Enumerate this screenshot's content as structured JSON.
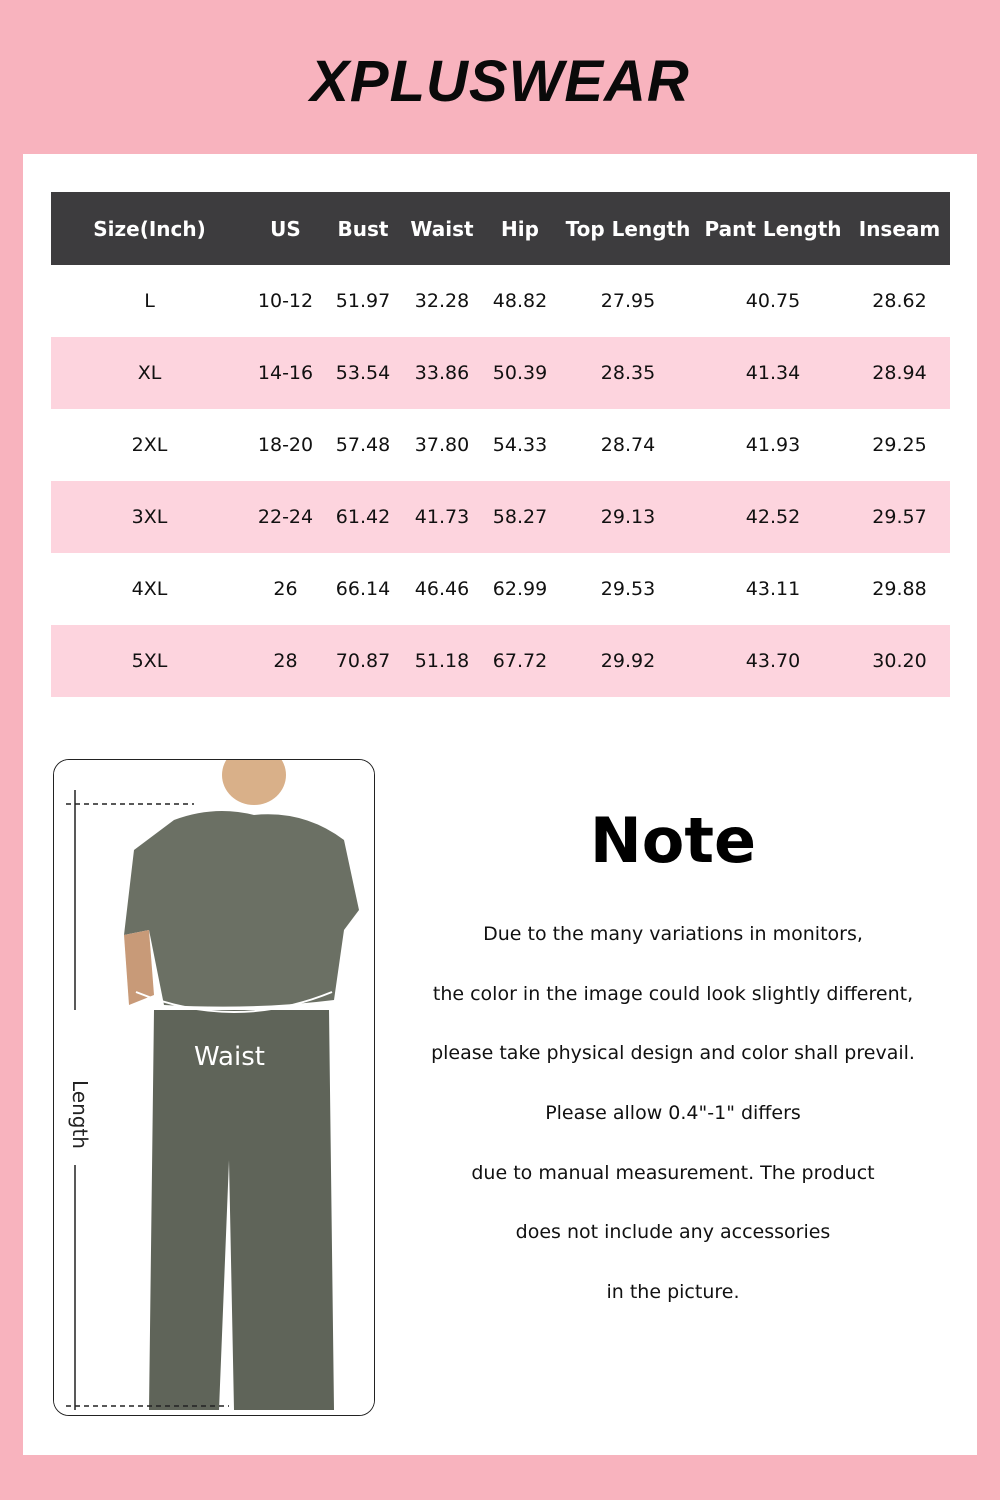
{
  "brand": {
    "logo_text": "XPLUSWEAR"
  },
  "colors": {
    "background": "#f8b3be",
    "header": "#3d3c3e",
    "row_alt": "#fdd4de"
  },
  "size_table": {
    "headers": [
      "Size(Inch)",
      "US",
      "Bust",
      "Waist",
      "Hip",
      "Top Length",
      "Pant Length",
      "Inseam"
    ],
    "rows": [
      [
        "L",
        "10-12",
        "51.97",
        "32.28",
        "48.82",
        "27.95",
        "40.75",
        "28.62"
      ],
      [
        "XL",
        "14-16",
        "53.54",
        "33.86",
        "50.39",
        "28.35",
        "41.34",
        "28.94"
      ],
      [
        "2XL",
        "18-20",
        "57.48",
        "37.80",
        "54.33",
        "28.74",
        "41.93",
        "29.25"
      ],
      [
        "3XL",
        "22-24",
        "61.42",
        "41.73",
        "58.27",
        "29.13",
        "42.52",
        "29.57"
      ],
      [
        "4XL",
        "26",
        "66.14",
        "46.46",
        "62.99",
        "29.53",
        "43.11",
        "29.88"
      ],
      [
        "5XL",
        "28",
        "70.87",
        "51.18",
        "67.72",
        "29.92",
        "43.70",
        "30.20"
      ]
    ]
  },
  "photo": {
    "waist_label": "Waist",
    "length_label": "Length"
  },
  "note": {
    "title": "Note",
    "lines": [
      "Due to the many variations in monitors,",
      "the color in the image could look slightly different,",
      "please take physical design and color shall prevail.",
      "Please allow 0.4\"-1\" differs",
      "due to manual measurement. The product",
      "does not include any accessories",
      "in the picture."
    ]
  }
}
